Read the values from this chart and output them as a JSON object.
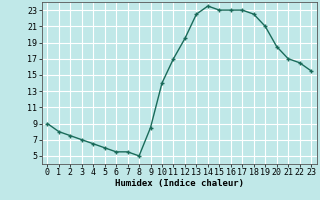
{
  "x": [
    0,
    1,
    2,
    3,
    4,
    5,
    6,
    7,
    8,
    9,
    10,
    11,
    12,
    13,
    14,
    15,
    16,
    17,
    18,
    19,
    20,
    21,
    22,
    23
  ],
  "y": [
    9,
    8,
    7.5,
    7,
    6.5,
    6,
    5.5,
    5.5,
    5,
    8.5,
    14,
    17,
    19.5,
    22.5,
    23.5,
    23,
    23,
    23,
    22.5,
    21,
    18.5,
    17,
    16.5,
    15.5
  ],
  "line_color": "#1a6b5a",
  "marker": "+",
  "marker_color": "#1a6b5a",
  "bg_color": "#c0e8e8",
  "grid_color": "#ffffff",
  "xlabel": "Humidex (Indice chaleur)",
  "xlim": [
    -0.5,
    23.5
  ],
  "ylim": [
    4,
    24
  ],
  "xtick_labels": [
    "0",
    "1",
    "2",
    "3",
    "4",
    "5",
    "6",
    "7",
    "8",
    "9",
    "10",
    "11",
    "12",
    "13",
    "14",
    "15",
    "16",
    "17",
    "18",
    "19",
    "20",
    "21",
    "22",
    "23"
  ],
  "ytick_values": [
    5,
    7,
    9,
    11,
    13,
    15,
    17,
    19,
    21,
    23
  ],
  "xlabel_fontsize": 6.5,
  "tick_fontsize": 6.0,
  "linewidth": 1.0,
  "markersize": 3.5
}
